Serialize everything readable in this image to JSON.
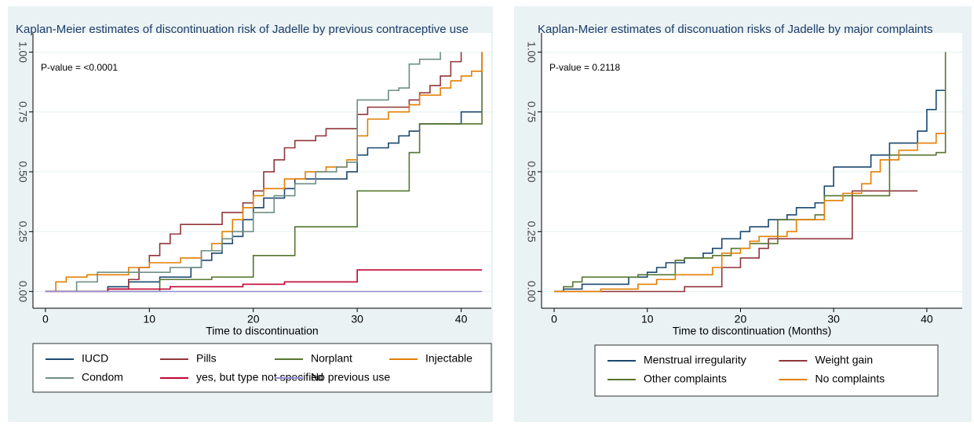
{
  "chart_data": [
    {
      "type": "line",
      "step": true,
      "title": "Kaplan-Meier  estimates of discontinuation risk of Jadelle by previous contraceptive use",
      "annotation": "P-value =   <0.0001",
      "xlabel": "Time to discontinuation",
      "xlim": [
        -1.2,
        42.9
      ],
      "xticks": [
        0,
        10,
        20,
        30,
        40
      ],
      "ylim": [
        -0.07,
        1.08
      ],
      "yticks": [
        {
          "value": 0,
          "label": "0.00"
        },
        0.25,
        {
          "value": 0.5,
          "label": "0.50"
        },
        0.75,
        {
          "value": 1,
          "label": "1.00"
        }
      ],
      "grid": true,
      "series": [
        {
          "name": "IUCD",
          "color": "#1a476f",
          "x": [
            0,
            6,
            8,
            11,
            14,
            15,
            16,
            17,
            18,
            19,
            20,
            21,
            23,
            24,
            29,
            30,
            31,
            33,
            34,
            35,
            36,
            40,
            42
          ],
          "values": [
            0,
            0.02,
            0.04,
            0.06,
            0.1,
            0.13,
            0.16,
            0.2,
            0.23,
            0.3,
            0.35,
            0.39,
            0.43,
            0.47,
            0.5,
            0.57,
            0.6,
            0.62,
            0.65,
            0.67,
            0.7,
            0.75,
            0.75
          ]
        },
        {
          "name": "Pills",
          "color": "#90353b",
          "x": [
            0,
            6,
            8,
            9,
            10,
            11,
            12,
            13,
            17,
            19,
            20,
            21,
            22,
            23,
            24,
            26,
            27,
            30,
            31,
            35,
            36,
            37,
            38,
            39,
            40
          ],
          "values": [
            0,
            0.01,
            0.05,
            0.1,
            0.15,
            0.2,
            0.24,
            0.28,
            0.33,
            0.37,
            0.42,
            0.5,
            0.55,
            0.6,
            0.63,
            0.65,
            0.68,
            0.74,
            0.77,
            0.8,
            0.83,
            0.86,
            0.9,
            0.96,
            1.0
          ]
        },
        {
          "name": "Norplant",
          "color": "#55752f",
          "x": [
            0,
            11,
            16,
            20,
            24,
            30,
            35,
            36,
            42
          ],
          "values": [
            0,
            0.05,
            0.06,
            0.15,
            0.27,
            0.42,
            0.58,
            0.7,
            1.0
          ]
        },
        {
          "name": "Injectable",
          "color": "#e37e00",
          "x": [
            0,
            1,
            2,
            4,
            8,
            10,
            13,
            15,
            16,
            17,
            18,
            19,
            20,
            21,
            23,
            25,
            27,
            29,
            30,
            31,
            33,
            35,
            36,
            38,
            39,
            40,
            41,
            42
          ],
          "values": [
            0,
            0.04,
            0.06,
            0.07,
            0.1,
            0.12,
            0.14,
            0.17,
            0.2,
            0.25,
            0.3,
            0.35,
            0.4,
            0.43,
            0.47,
            0.5,
            0.52,
            0.55,
            0.65,
            0.72,
            0.75,
            0.78,
            0.82,
            0.85,
            0.88,
            0.9,
            0.92,
            1.0
          ]
        },
        {
          "name": "Condom",
          "color": "#6e8e84",
          "x": [
            0,
            3,
            5,
            12,
            15,
            17,
            18,
            20,
            22,
            24,
            26,
            28,
            29,
            30,
            33,
            34,
            35,
            36,
            38
          ],
          "values": [
            0,
            0.04,
            0.08,
            0.1,
            0.17,
            0.22,
            0.25,
            0.33,
            0.4,
            0.45,
            0.5,
            0.52,
            0.54,
            0.8,
            0.84,
            0.85,
            0.95,
            0.97,
            1.0
          ]
        },
        {
          "name": "yes, but type not specified",
          "color": "#c10534",
          "x": [
            0,
            6,
            12,
            19,
            23,
            30,
            42
          ],
          "values": [
            0,
            0.01,
            0.02,
            0.03,
            0.04,
            0.09,
            0.09
          ]
        },
        {
          "name": "No previous use",
          "color": "#938dd2",
          "x": [
            0,
            42
          ],
          "values": [
            0,
            0
          ]
        }
      ]
    },
    {
      "type": "line",
      "step": true,
      "title": "Kaplan-Meier estimates of disconuation risks of Jadelle by major complaints",
      "annotation": "P-value = 0.2118",
      "xlabel": "Time to discontinuation (Months)",
      "xlim": [
        -1.35,
        43.8
      ],
      "xticks": [
        0,
        10,
        20,
        30,
        40
      ],
      "ylim": [
        -0.07,
        1.08
      ],
      "yticks": [
        {
          "value": 0,
          "label": "0.00"
        },
        0.25,
        {
          "value": 0.5,
          "label": "0.50"
        },
        0.75,
        {
          "value": 1,
          "label": "1.00"
        }
      ],
      "grid": true,
      "series": [
        {
          "name": "Menstrual irregularity",
          "color": "#1a476f",
          "x": [
            0,
            1,
            3,
            8,
            10,
            11,
            12,
            14,
            16,
            17,
            18,
            20,
            21,
            23,
            25,
            26,
            28,
            29,
            30,
            34,
            36,
            39,
            40,
            41,
            42
          ],
          "values": [
            0,
            0.01,
            0.03,
            0.06,
            0.08,
            0.1,
            0.12,
            0.14,
            0.16,
            0.18,
            0.22,
            0.25,
            0.27,
            0.3,
            0.32,
            0.35,
            0.37,
            0.44,
            0.52,
            0.57,
            0.62,
            0.67,
            0.76,
            0.84,
            0.84
          ]
        },
        {
          "name": "Weight gain",
          "color": "#90353b",
          "x": [
            0,
            14,
            18,
            20,
            22,
            23,
            32,
            39
          ],
          "values": [
            0,
            0.02,
            0.1,
            0.14,
            0.18,
            0.22,
            0.42,
            0.42
          ]
        },
        {
          "name": "Other complaints",
          "color": "#55752f",
          "x": [
            0,
            1,
            2,
            3,
            9,
            13,
            14,
            17,
            19,
            21,
            24,
            28,
            29,
            36,
            41,
            42
          ],
          "values": [
            0,
            0.02,
            0.04,
            0.06,
            0.07,
            0.13,
            0.14,
            0.15,
            0.18,
            0.2,
            0.3,
            0.32,
            0.4,
            0.57,
            0.58,
            1.0
          ]
        },
        {
          "name": "No complaints",
          "color": "#e37e00",
          "x": [
            0,
            5,
            9,
            11,
            13,
            17,
            18,
            20,
            21,
            22,
            25,
            26,
            29,
            31,
            33,
            34,
            35,
            37,
            39,
            41,
            42
          ],
          "values": [
            0,
            0.01,
            0.03,
            0.05,
            0.07,
            0.1,
            0.16,
            0.18,
            0.21,
            0.23,
            0.25,
            0.3,
            0.38,
            0.41,
            0.45,
            0.5,
            0.55,
            0.59,
            0.62,
            0.66,
            0.66
          ]
        }
      ]
    }
  ]
}
